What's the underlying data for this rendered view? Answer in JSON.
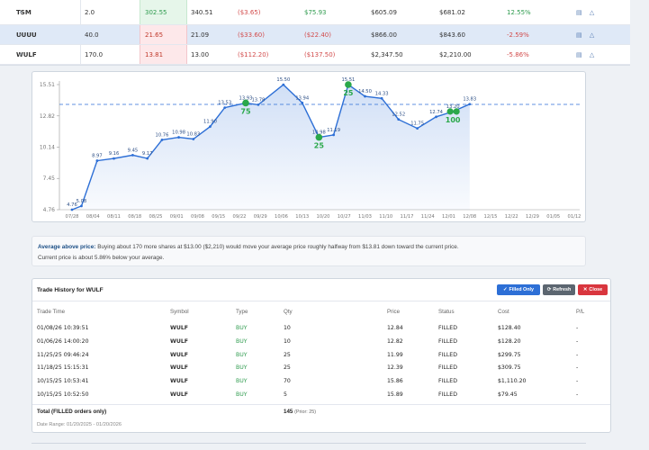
{
  "positions": [
    {
      "symbol": "TSM",
      "qty": "2.0",
      "low": "302.55",
      "low_color": "green",
      "current": "340.51",
      "pl1": "($3.65)",
      "pl1_pos": false,
      "pl2": "$75.93",
      "pl2_pos": true,
      "cost": "$605.09",
      "value": "$681.02",
      "pct": "12.55%",
      "pct_pos": true
    },
    {
      "symbol": "UUUU",
      "qty": "40.0",
      "low": "21.65",
      "low_color": "red",
      "current": "21.09",
      "pl1": "($33.60)",
      "pl1_pos": false,
      "pl2": "($22.40)",
      "pl2_pos": false,
      "cost": "$866.00",
      "value": "$843.60",
      "pct": "-2.59%",
      "pct_pos": false
    },
    {
      "symbol": "WULF",
      "qty": "170.0",
      "low": "13.81",
      "low_color": "red",
      "current": "13.00",
      "pl1": "($112.20)",
      "pl1_pos": false,
      "pl2": "($137.50)",
      "pl2_pos": false,
      "cost": "$2,347.50",
      "value": "$2,210.00",
      "pct": "-5.86%",
      "pct_pos": false
    }
  ],
  "actions_glyph": "▤ △",
  "chart_data": {
    "type": "line",
    "title": "",
    "xlabel": "",
    "ylabel": "",
    "ylim": [
      4.76,
      15.51
    ],
    "y_ticks": [
      "15.51",
      "12.82",
      "10.14",
      "7.45",
      "4.76"
    ],
    "x_ticks": [
      "07/28",
      "08/04",
      "08/11",
      "08/18",
      "08/25",
      "09/01",
      "09/08",
      "09/15",
      "09/22",
      "09/29",
      "10/06",
      "10/13",
      "10/20",
      "10/27",
      "11/03",
      "11/10",
      "11/17",
      "11/24",
      "12/01",
      "12/08",
      "12/15",
      "12/22",
      "12/29",
      "01/05",
      "01/12"
    ],
    "avg_line": 13.81,
    "points": [
      {
        "x": 0.0,
        "y": 4.76,
        "label": "4.76"
      },
      {
        "x": 0.45,
        "y": 5.08,
        "label": "5.08"
      },
      {
        "x": 1.2,
        "y": 8.97,
        "label": "8.97"
      },
      {
        "x": 2.0,
        "y": 9.16,
        "label": "9.16"
      },
      {
        "x": 2.9,
        "y": 9.45,
        "label": "9.45"
      },
      {
        "x": 3.6,
        "y": 9.17,
        "label": "9.17"
      },
      {
        "x": 4.3,
        "y": 10.76,
        "label": "10.76"
      },
      {
        "x": 5.1,
        "y": 10.98,
        "label": "10.98"
      },
      {
        "x": 5.8,
        "y": 10.83,
        "label": "10.83"
      },
      {
        "x": 6.6,
        "y": 11.9,
        "label": "11.90"
      },
      {
        "x": 7.3,
        "y": 13.53,
        "label": "13.53"
      },
      {
        "x": 8.3,
        "y": 13.93,
        "label": "13.93"
      },
      {
        "x": 8.9,
        "y": 13.78,
        "label": "13.78"
      },
      {
        "x": 10.1,
        "y": 15.5,
        "label": "15.50"
      },
      {
        "x": 11.0,
        "y": 13.94,
        "label": "13.94"
      },
      {
        "x": 11.8,
        "y": 10.98,
        "label": "10.98"
      },
      {
        "x": 12.5,
        "y": 11.19,
        "label": "11.19"
      },
      {
        "x": 13.2,
        "y": 15.51,
        "label": "15.51"
      },
      {
        "x": 14.0,
        "y": 14.5,
        "label": "14.50"
      },
      {
        "x": 14.8,
        "y": 14.33,
        "label": "14.33"
      },
      {
        "x": 15.6,
        "y": 12.52,
        "label": "12.52"
      },
      {
        "x": 16.5,
        "y": 11.75,
        "label": "11.75"
      },
      {
        "x": 17.4,
        "y": 12.74,
        "label": "12.74"
      },
      {
        "x": 18.2,
        "y": 13.2,
        "label": "13.20"
      },
      {
        "x": 19.0,
        "y": 13.83,
        "label": "13.83"
      }
    ],
    "buys": [
      {
        "x": 8.3,
        "y": 13.93,
        "qty": "75"
      },
      {
        "x": 11.8,
        "y": 10.98,
        "qty": "25"
      },
      {
        "x": 13.2,
        "y": 15.51,
        "qty": "25"
      },
      {
        "x": 18.2,
        "y": 13.2,
        "qty": "100"
      }
    ],
    "line_color": "#2d6fd6",
    "buy_color": "#2aa84a"
  },
  "note": {
    "label": "Average above price:",
    "text": "Buying about 170 more shares at $13.00 ($2,210) would move your average price roughly halfway from $13.81 down toward the current price.",
    "line2": "Current price is about 5.86% below your average."
  },
  "history": {
    "title": "Trade History for WULF",
    "btn_filled": "Filled Only",
    "btn_refresh": "Refresh",
    "btn_close": "Close",
    "headers": {
      "time": "Trade Time",
      "symbol": "Symbol",
      "type": "Type",
      "qty": "Qty",
      "price": "Price",
      "status": "Status",
      "cost": "Cost",
      "pl": "P/L"
    },
    "rows": [
      {
        "time": "01/08/26 10:39:51",
        "symbol": "WULF",
        "type": "BUY",
        "qty": "10",
        "price": "12.84",
        "status": "FILLED",
        "cost": "$128.40",
        "pl": "-"
      },
      {
        "time": "01/06/26 14:00:20",
        "symbol": "WULF",
        "type": "BUY",
        "qty": "10",
        "price": "12.82",
        "status": "FILLED",
        "cost": "$128.20",
        "pl": "-"
      },
      {
        "time": "11/25/25 09:46:24",
        "symbol": "WULF",
        "type": "BUY",
        "qty": "25",
        "price": "11.99",
        "status": "FILLED",
        "cost": "$299.75",
        "pl": "-"
      },
      {
        "time": "11/18/25 15:15:31",
        "symbol": "WULF",
        "type": "BUY",
        "qty": "25",
        "price": "12.39",
        "status": "FILLED",
        "cost": "$309.75",
        "pl": "-"
      },
      {
        "time": "10/15/25 10:53:41",
        "symbol": "WULF",
        "type": "BUY",
        "qty": "70",
        "price": "15.86",
        "status": "FILLED",
        "cost": "$1,110.20",
        "pl": "-"
      },
      {
        "time": "10/15/25 10:52:50",
        "symbol": "WULF",
        "type": "BUY",
        "qty": "5",
        "price": "15.89",
        "status": "FILLED",
        "cost": "$79.45",
        "pl": "-"
      }
    ],
    "total_label": "Total (FILLED orders only)",
    "total_qty": "145",
    "total_prior": "(Prior: 25)",
    "date_range": "Date Range: 01/20/2025 - 01/20/2026"
  }
}
